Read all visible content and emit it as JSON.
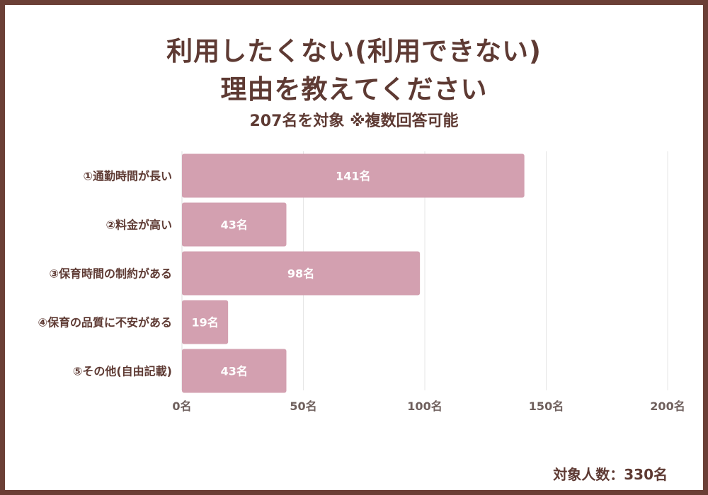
{
  "title_line1": "利用したくない(利用できない)",
  "title_line2": "理由を教えてください",
  "subtitle": "207名を対象 ※複数回答可能",
  "footnote": "対象人数：330名",
  "colors": {
    "bar": "#d3a0b0",
    "frame": "#6b3f36",
    "text": "#5e3a33",
    "grid": "#e6e6e6"
  },
  "chart_data": {
    "type": "bar",
    "orientation": "horizontal",
    "title": "利用したくない(利用できない)理由を教えてください",
    "subtitle": "207名を対象 ※複数回答可能",
    "categories": [
      "①通勤時間が長い",
      "②料金が高い",
      "③保育時間の制約がある",
      "④保育の品質に不安がある",
      "⑤その他(自由記載)"
    ],
    "values": [
      141,
      43,
      98,
      19,
      43
    ],
    "value_labels": [
      "141名",
      "43名",
      "98名",
      "19名",
      "43名"
    ],
    "xlim": [
      0,
      200
    ],
    "x_ticks": [
      0,
      50,
      100,
      150,
      200
    ],
    "x_tick_labels": [
      "0名",
      "50名",
      "100名",
      "150名",
      "200名"
    ],
    "grid": true,
    "legend": "none"
  }
}
